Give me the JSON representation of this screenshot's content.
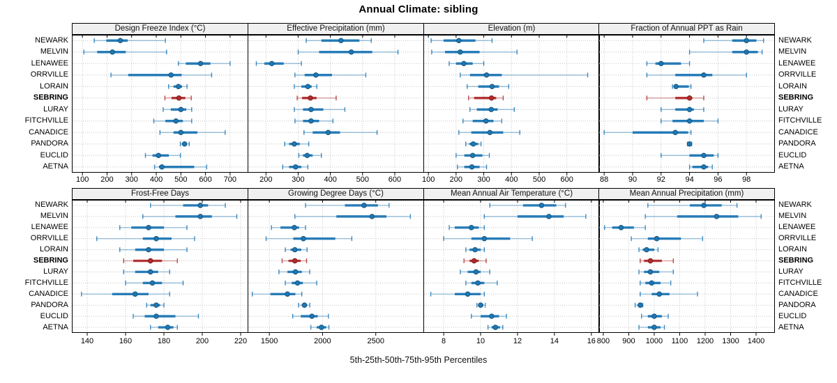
{
  "title": "Annual Climate: sibling",
  "caption": "5th-25th-50th-75th-95th Percentiles",
  "colors": {
    "series_blue": "#1f77b4",
    "series_blue_dark": "#14557f",
    "highlight_red": "#b02c2c",
    "highlight_red_dark": "#7f1d1d",
    "grid": "#c4c4c4",
    "panel_border": "#000000",
    "header_bg": "#f0f0f0",
    "background": "#ffffff"
  },
  "chart_data": {
    "type": "percentile-dotplot",
    "layout": "2 rows x 4 columns trellis, site labels on left and right, gridlines dotted",
    "percentiles": [
      5,
      25,
      50,
      75,
      95
    ],
    "sites": [
      "NEWARK",
      "MELVIN",
      "LENAWEE",
      "ORRVILLE",
      "LORAIN",
      "SEBRING",
      "LURAY",
      "FITCHVILLE",
      "CANADICE",
      "PANDORA",
      "EUCLID",
      "AETNA"
    ],
    "highlight_site": "SEBRING",
    "panels": [
      {
        "title": "Design Freeze Index (°C)",
        "xlim": [
          57,
          774
        ],
        "ticks": [
          100,
          200,
          300,
          400,
          500,
          600,
          700
        ],
        "values": {
          "NEWARK": [
            148,
            197,
            254,
            284,
            437
          ],
          "MELVIN": [
            106,
            160,
            222,
            276,
            442
          ],
          "LENAWEE": [
            490,
            520,
            580,
            620,
            700
          ],
          "ORRVILLE": [
            216,
            286,
            460,
            503,
            625
          ],
          "LORAIN": [
            450,
            470,
            490,
            505,
            525
          ],
          "SEBRING": [
            435,
            462,
            492,
            518,
            542
          ],
          "LURAY": [
            428,
            459,
            500,
            522,
            544
          ],
          "FITCHVILLE": [
            390,
            437,
            480,
            508,
            544
          ],
          "CANADICE": [
            415,
            470,
            500,
            567,
            680
          ],
          "PANDORA": [
            498,
            505,
            515,
            525,
            534
          ],
          "EUCLID": [
            356,
            385,
            409,
            451,
            498
          ],
          "AETNA": [
            393,
            411,
            423,
            554,
            605
          ]
        }
      },
      {
        "title": "Effective Precipitation (mm)",
        "xlim": [
          143,
          691
        ],
        "ticks": [
          200,
          300,
          400,
          500,
          600
        ],
        "values": {
          "NEWARK": [
            325,
            372,
            433,
            490,
            527
          ],
          "MELVIN": [
            300,
            365,
            465,
            530,
            610
          ],
          "LENAWEE": [
            170,
            195,
            218,
            255,
            310
          ],
          "ORRVILLE": [
            290,
            320,
            355,
            405,
            510
          ],
          "LORAIN": [
            288,
            310,
            330,
            342,
            358
          ],
          "SEBRING": [
            297,
            312,
            338,
            357,
            418
          ],
          "LURAY": [
            288,
            315,
            340,
            378,
            445
          ],
          "FITCHVILLE": [
            290,
            315,
            340,
            365,
            408
          ],
          "CANADICE": [
            318,
            345,
            393,
            430,
            545
          ],
          "PANDORA": [
            258,
            272,
            288,
            305,
            333
          ],
          "EUCLID": [
            302,
            315,
            328,
            345,
            372
          ],
          "AETNA": [
            252,
            272,
            292,
            310,
            330
          ]
        }
      },
      {
        "title": "Elevation (m)",
        "xlim": [
          82,
          719
        ],
        "ticks": [
          100,
          200,
          300,
          400,
          500,
          600
        ],
        "values": {
          "NEWARK": [
            110,
            155,
            210,
            270,
            330
          ],
          "MELVIN": [
            112,
            160,
            215,
            285,
            420
          ],
          "LENAWEE": [
            175,
            200,
            228,
            260,
            300
          ],
          "ORRVILLE": [
            215,
            250,
            310,
            365,
            675
          ],
          "LORAIN": [
            240,
            280,
            330,
            355,
            390
          ],
          "SEBRING": [
            245,
            265,
            328,
            345,
            370
          ],
          "LURAY": [
            250,
            275,
            327,
            350,
            410
          ],
          "FITCHVILLE": [
            225,
            260,
            308,
            335,
            365
          ],
          "CANADICE": [
            210,
            255,
            322,
            370,
            430
          ],
          "PANDORA": [
            235,
            248,
            262,
            280,
            290
          ],
          "EUCLID": [
            200,
            230,
            260,
            295,
            320
          ],
          "AETNA": [
            205,
            230,
            257,
            285,
            310
          ]
        }
      },
      {
        "title": "Fraction of Annual PPT as Rain",
        "xlim": [
          87.6,
          100
        ],
        "ticks": [
          88,
          90,
          92,
          94,
          96,
          98
        ],
        "values": {
          "NEWARK": [
            95,
            97,
            98,
            98.7,
            99.2
          ],
          "MELVIN": [
            94,
            97,
            98,
            98.8,
            99.1
          ],
          "LENAWEE": [
            91,
            91.6,
            92,
            93.4,
            94
          ],
          "ORRVILLE": [
            91,
            93,
            95,
            95.6,
            98
          ],
          "LORAIN": [
            92.8,
            92.9,
            93.05,
            93.95,
            94.1
          ],
          "SEBRING": [
            91,
            93,
            94,
            94.2,
            95
          ],
          "LURAY": [
            92,
            93,
            94,
            94.3,
            95
          ],
          "FITCHVILLE": [
            92,
            92.8,
            94,
            95,
            96
          ],
          "CANADICE": [
            88,
            90,
            93,
            93.9,
            94.1
          ],
          "PANDORA": [
            93.85,
            93.95,
            94,
            94.05,
            94.15
          ],
          "EUCLID": [
            92,
            94,
            95,
            95.7,
            96
          ],
          "AETNA": [
            94,
            94.2,
            95,
            95.3,
            95.6
          ]
        }
      },
      {
        "title": "Frost-Free Days",
        "xlim": [
          132,
          224
        ],
        "ticks": [
          140,
          160,
          180,
          200,
          220
        ],
        "values": {
          "NEWARK": [
            173,
            190,
            199,
            203,
            212
          ],
          "MELVIN": [
            169,
            186,
            199,
            205,
            218
          ],
          "LENAWEE": [
            157,
            163,
            172,
            180,
            192
          ],
          "ORRVILLE": [
            145,
            169,
            176,
            184,
            196
          ],
          "LORAIN": [
            157,
            165,
            172,
            180,
            192
          ],
          "SEBRING": [
            159,
            164,
            173,
            179,
            187
          ],
          "LURAY": [
            159,
            165,
            173,
            177,
            183
          ],
          "FITCHVILLE": [
            160,
            169,
            174,
            179,
            190
          ],
          "CANADICE": [
            137,
            153,
            165,
            172,
            183
          ],
          "PANDORA": [
            171,
            173,
            176,
            178,
            180
          ],
          "EUCLID": [
            164,
            170,
            176,
            186,
            198
          ],
          "AETNA": [
            173,
            177,
            182,
            185,
            187
          ]
        }
      },
      {
        "title": "Growing Degree Days (°C)",
        "xlim": [
          1296,
          2954
        ],
        "ticks": [
          1500,
          2000,
          2500
        ],
        "values": {
          "NEWARK": [
            1840,
            2210,
            2390,
            2520,
            2625
          ],
          "MELVIN": [
            1740,
            2130,
            2465,
            2600,
            2825
          ],
          "LENAWEE": [
            1520,
            1605,
            1735,
            1780,
            1840
          ],
          "ORRVILLE": [
            1470,
            1725,
            1820,
            2120,
            2275
          ],
          "LORAIN": [
            1650,
            1700,
            1740,
            1800,
            1855
          ],
          "SEBRING": [
            1620,
            1680,
            1740,
            1795,
            1850
          ],
          "LURAY": [
            1590,
            1670,
            1745,
            1805,
            1880
          ],
          "FITCHVILLE": [
            1650,
            1710,
            1765,
            1815,
            1945
          ],
          "CANADICE": [
            1340,
            1510,
            1670,
            1745,
            1805
          ],
          "PANDORA": [
            1775,
            1805,
            1830,
            1855,
            1880
          ],
          "EUCLID": [
            1720,
            1795,
            1900,
            1955,
            2055
          ],
          "AETNA": [
            1890,
            1945,
            1990,
            2035,
            2060
          ]
        }
      },
      {
        "title": "Mean Annual Air Temperature (°C)",
        "xlim": [
          6.9,
          16.46
        ],
        "ticks": [
          8,
          10,
          12,
          14,
          16
        ],
        "values": {
          "NEWARK": [
            10.5,
            12.3,
            13.3,
            14.1,
            14.6
          ],
          "MELVIN": [
            10.2,
            12.0,
            13.7,
            14.5,
            15.7
          ],
          "LENAWEE": [
            8.3,
            8.6,
            9.5,
            9.9,
            10.2
          ],
          "ORRVILLE": [
            8.0,
            9.5,
            10.2,
            11.6,
            12.8
          ],
          "LORAIN": [
            9.2,
            9.4,
            9.7,
            10.0,
            10.2
          ],
          "SEBRING": [
            9.1,
            9.4,
            9.65,
            9.9,
            10.3
          ],
          "LURAY": [
            8.9,
            9.3,
            9.75,
            10.0,
            10.5
          ],
          "FITCHVILLE": [
            9.2,
            9.5,
            9.85,
            10.2,
            10.9
          ],
          "CANADICE": [
            7.3,
            8.6,
            9.3,
            10.0,
            10.2
          ],
          "PANDORA": [
            9.8,
            9.9,
            10.0,
            10.15,
            10.25
          ],
          "EUCLID": [
            9.5,
            10.0,
            10.6,
            11.0,
            11.4
          ],
          "AETNA": [
            10.4,
            10.6,
            10.8,
            11.05,
            11.2
          ]
        }
      },
      {
        "title": "Mean Annual Precipitation (mm)",
        "xlim": [
          781,
          1474
        ],
        "ticks": [
          800,
          900,
          1000,
          1100,
          1200,
          1300,
          1400
        ],
        "values": {
          "NEWARK": [
            975,
            1140,
            1195,
            1265,
            1325
          ],
          "MELVIN": [
            965,
            1090,
            1245,
            1330,
            1420
          ],
          "LENAWEE": [
            805,
            835,
            870,
            920,
            965
          ],
          "ORRVILLE": [
            910,
            975,
            1010,
            1105,
            1190
          ],
          "LORAIN": [
            940,
            955,
            970,
            1000,
            1015
          ],
          "SEBRING": [
            945,
            960,
            985,
            1030,
            1075
          ],
          "LURAY": [
            940,
            960,
            985,
            1020,
            1075
          ],
          "FITCHVILLE": [
            945,
            965,
            990,
            1025,
            1065
          ],
          "CANADICE": [
            945,
            990,
            1020,
            1060,
            1170
          ],
          "PANDORA": [
            925,
            935,
            945,
            950,
            955
          ],
          "EUCLID": [
            950,
            975,
            1000,
            1030,
            1055
          ],
          "AETNA": [
            940,
            975,
            1000,
            1025,
            1040
          ]
        }
      }
    ]
  }
}
